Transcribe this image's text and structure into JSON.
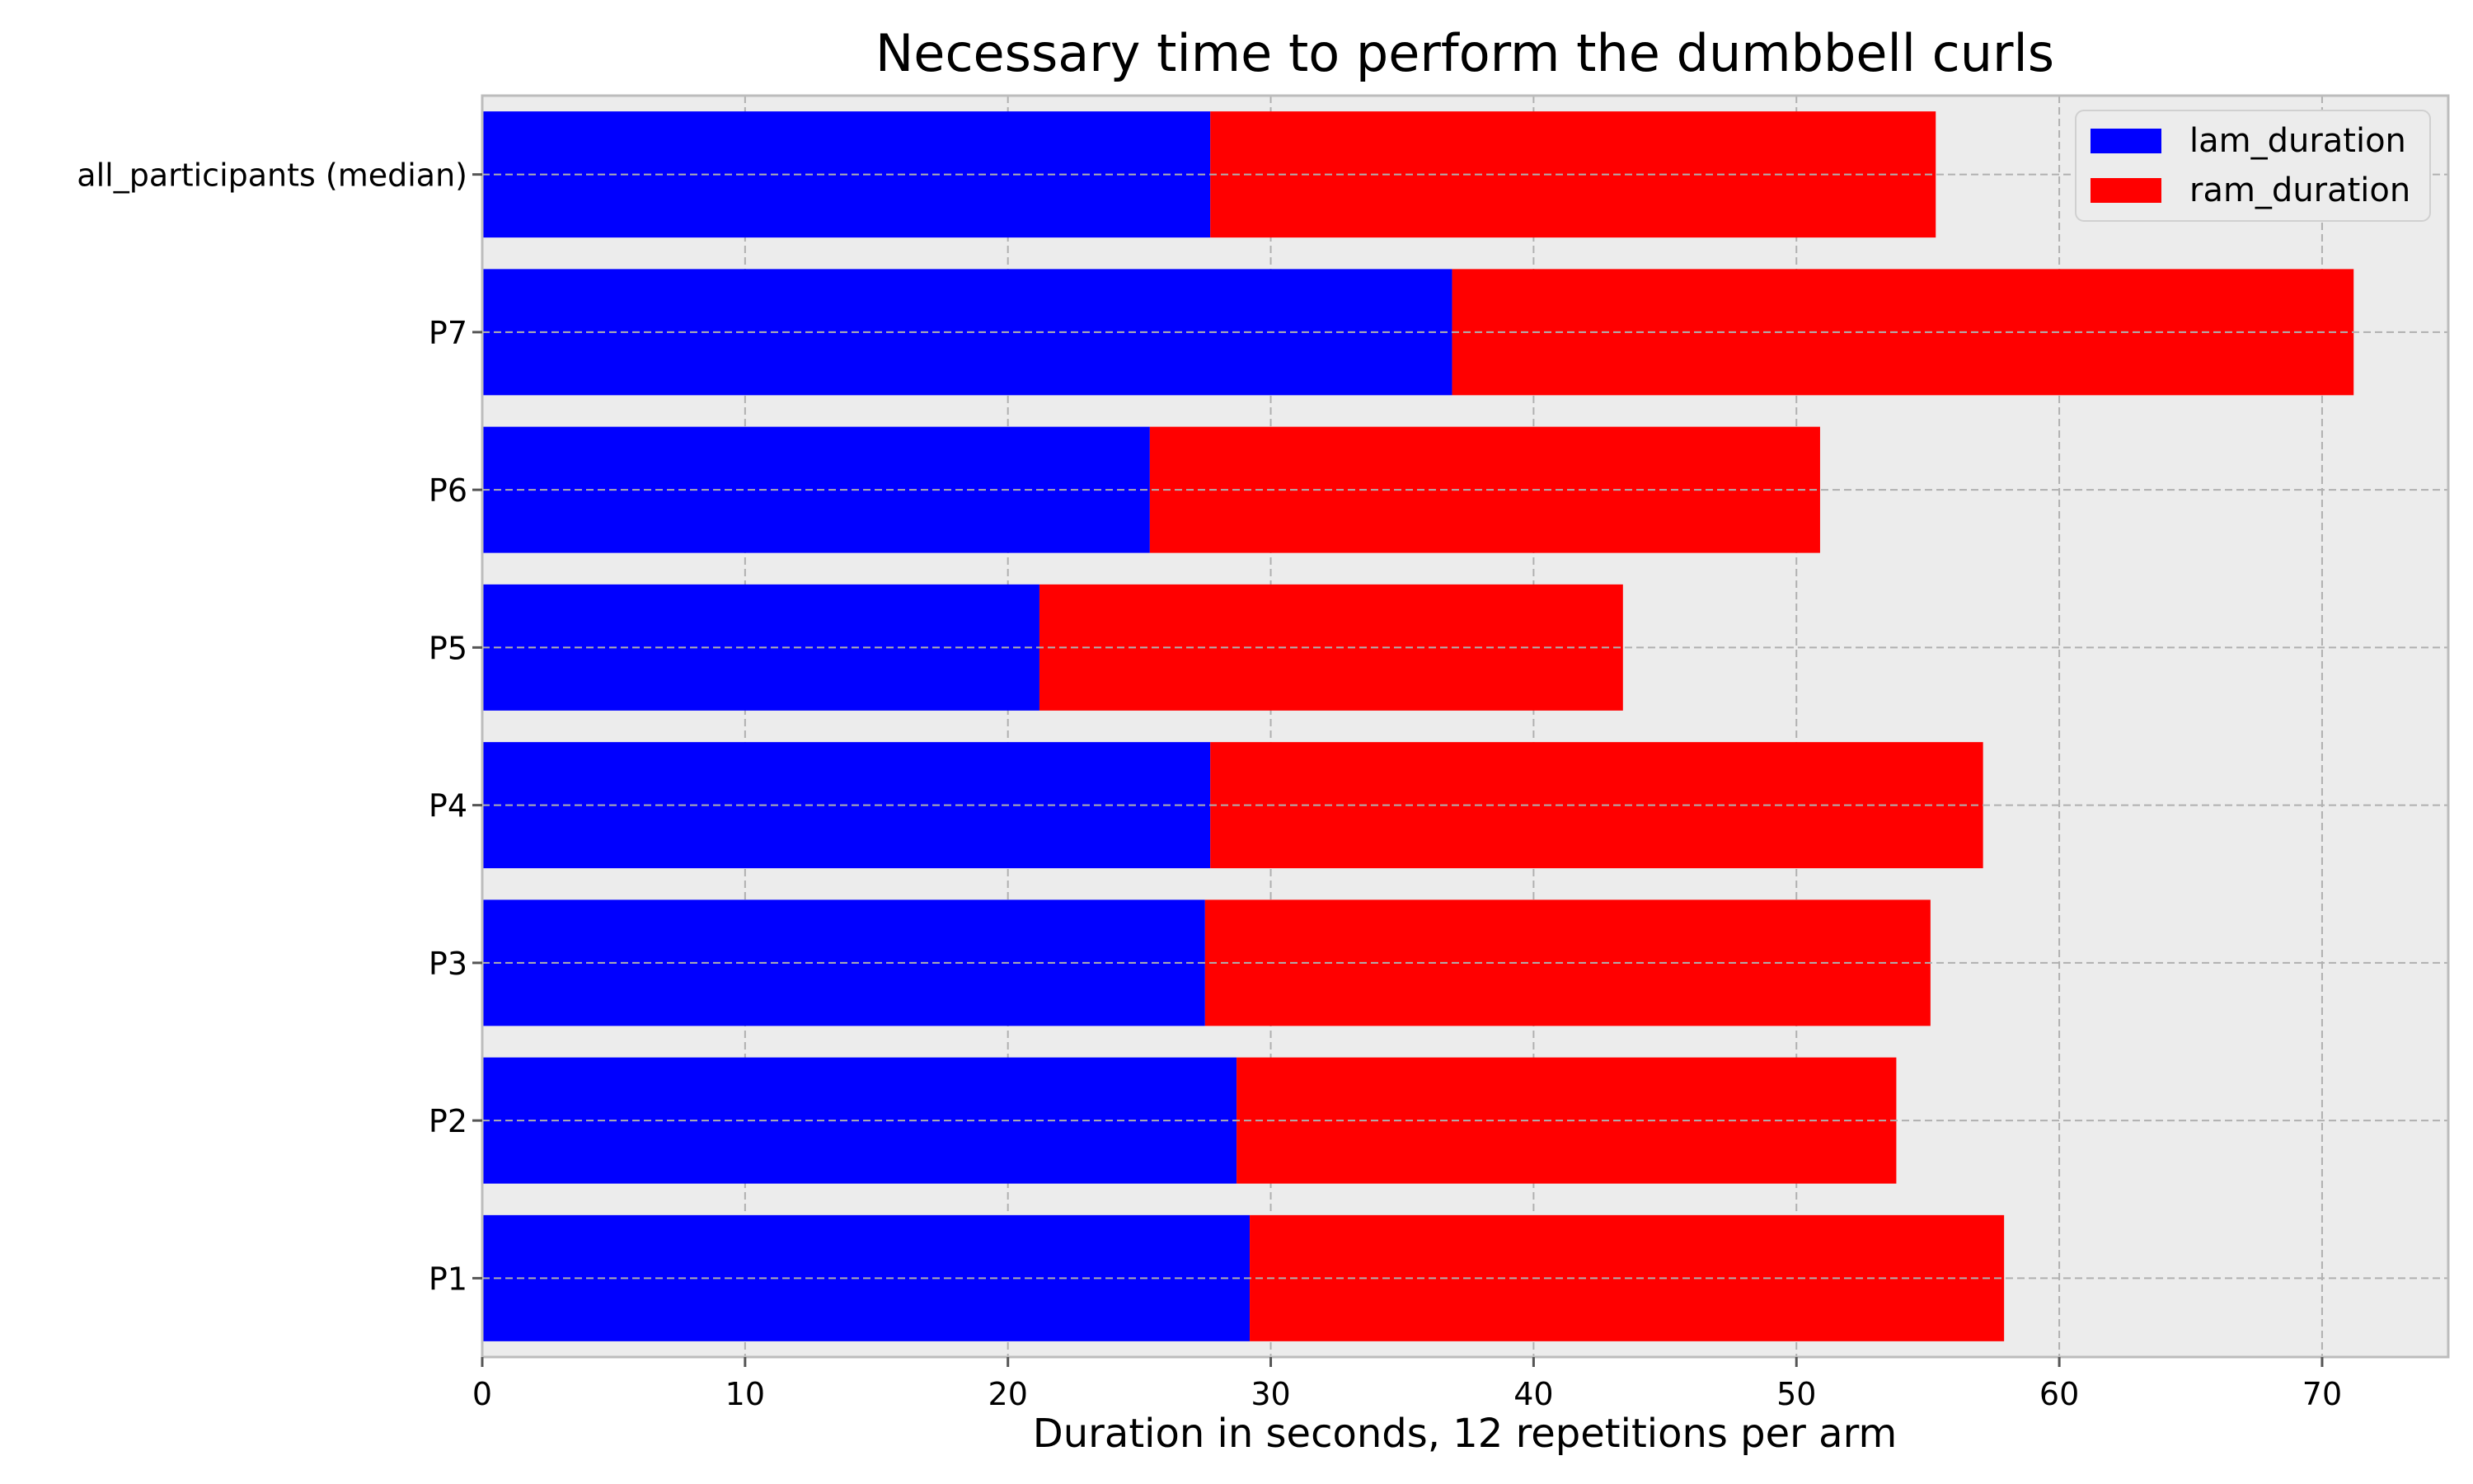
{
  "chart_data": {
    "type": "bar",
    "orientation": "horizontal",
    "stacked": true,
    "title": "Necessary time to perform the dumbbell curls",
    "xlabel": "Duration in seconds, 12 repetitions per arm",
    "ylabel": "",
    "categories": [
      "P1",
      "P2",
      "P3",
      "P4",
      "P5",
      "P6",
      "P7",
      "all_participants (median)"
    ],
    "series": [
      {
        "name": "lam_duration",
        "color": "#0000ff",
        "values": [
          29.2,
          28.7,
          27.5,
          27.7,
          21.2,
          25.4,
          36.9,
          27.7
        ]
      },
      {
        "name": "ram_duration",
        "color": "#ff0000",
        "values": [
          28.7,
          25.1,
          27.6,
          29.4,
          22.2,
          25.5,
          34.3,
          27.6
        ]
      }
    ],
    "xlim": [
      0,
      74.8
    ],
    "xticks": [
      0,
      10,
      20,
      30,
      40,
      50,
      60,
      70
    ],
    "grid": true,
    "legend_position": "top-right",
    "background_color": "#ececec"
  }
}
